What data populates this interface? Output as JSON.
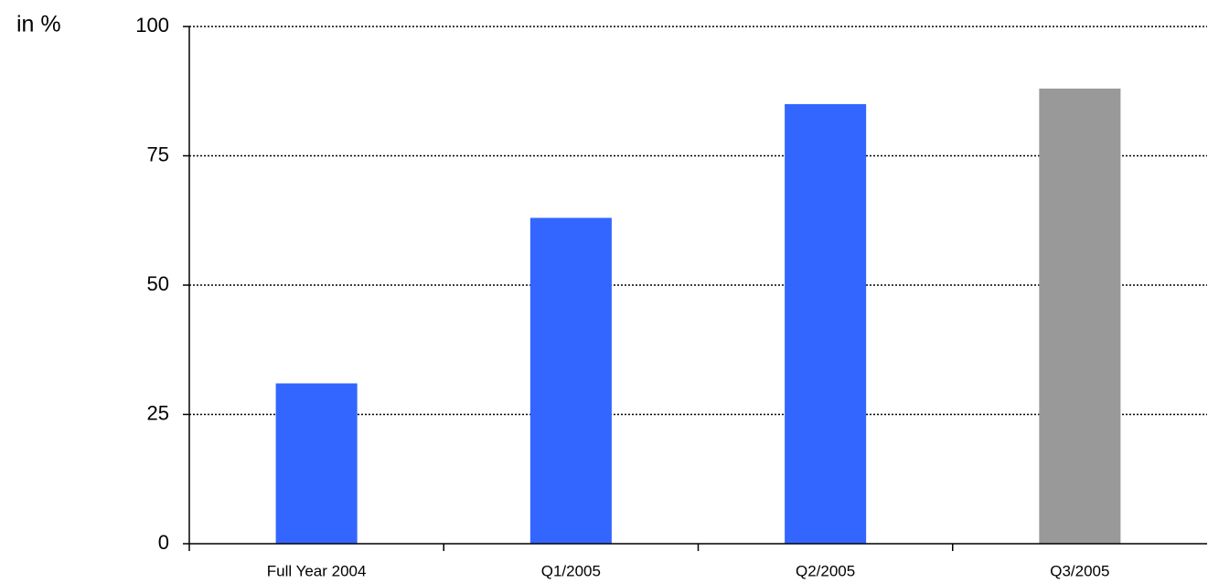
{
  "chart_data": {
    "type": "bar",
    "y_label": "in %",
    "categories": [
      "Full Year 2004",
      "Q1/2005",
      "Q2/2005",
      "Q3/2005"
    ],
    "values": [
      31,
      63,
      85,
      88
    ],
    "colors": [
      "#3366ff",
      "#3366ff",
      "#3366ff",
      "#999999"
    ],
    "ylim": [
      0,
      100
    ],
    "yticks": [
      0,
      25,
      50,
      75,
      100
    ],
    "grid": true
  }
}
